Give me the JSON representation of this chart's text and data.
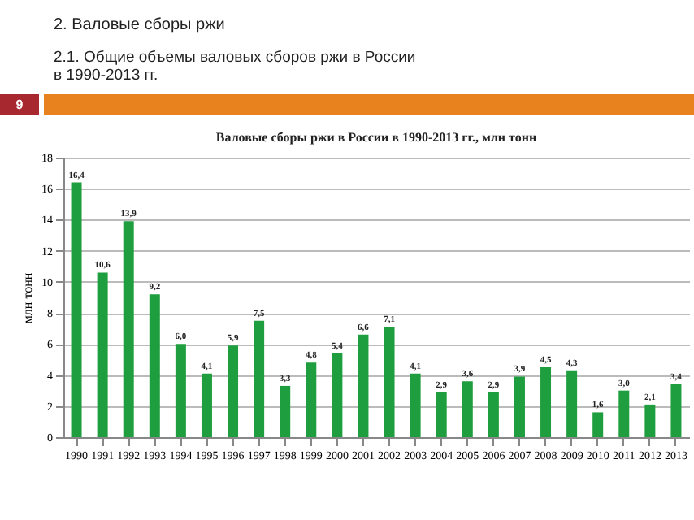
{
  "chart_data": {
    "type": "bar",
    "title": "Валовые сборы ржи в России в 1990-2013 гг., млн тонн",
    "ylabel": "млн тонн",
    "annotations": [
      "2. Валовые сборы ржи",
      "2.1.  Общие объемы валовых сборов ржи в России в 1990-2013 гг.",
      "9"
    ],
    "categories": [
      "1990",
      "1991",
      "1992",
      "1993",
      "1994",
      "1995",
      "1996",
      "1997",
      "1998",
      "1999",
      "2000",
      "2001",
      "2002",
      "2003",
      "2004",
      "2005",
      "2006",
      "2007",
      "2008",
      "2009",
      "2010",
      "2011",
      "2012",
      "2013"
    ],
    "values": [
      16.4,
      10.6,
      13.9,
      9.2,
      6.0,
      4.1,
      5.9,
      7.5,
      3.3,
      4.8,
      5.4,
      6.6,
      7.1,
      4.1,
      2.9,
      3.6,
      2.9,
      3.9,
      4.5,
      4.3,
      1.6,
      3.0,
      2.1,
      3.4
    ],
    "value_labels": [
      "16,4",
      "10,6",
      "13,9",
      "9,2",
      "6,0",
      "4,1",
      "5,9",
      "7,5",
      "3,3",
      "4,8",
      "5,4",
      "6,6",
      "7,1",
      "4,1",
      "2,9",
      "3,6",
      "2,9",
      "3,9",
      "4,5",
      "4,3",
      "1,6",
      "3,0",
      "2,1",
      "3,4"
    ],
    "color": "#1e9e3e",
    "ylim": [
      0,
      18
    ],
    "yticks": [
      0,
      2,
      4,
      6,
      8,
      10,
      12,
      14,
      16,
      18
    ],
    "grid": "y"
  }
}
